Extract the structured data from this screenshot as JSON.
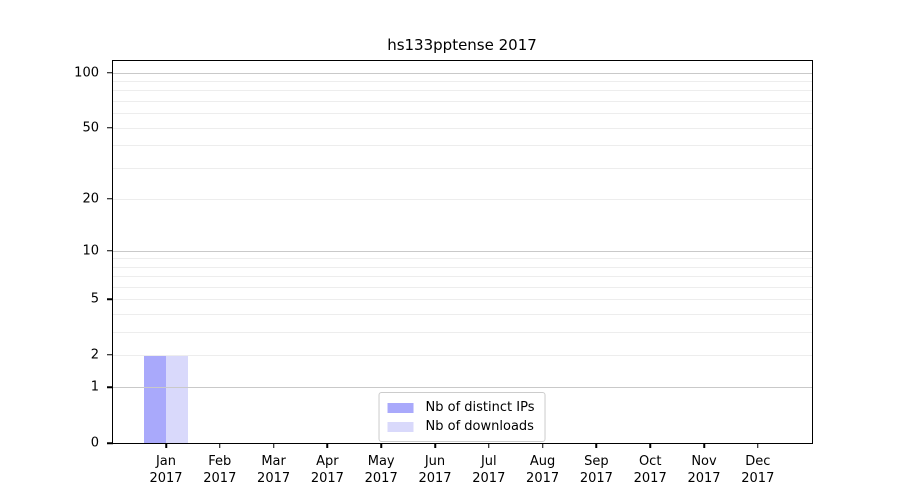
{
  "chart_data": {
    "type": "bar",
    "title": "hs133pptense 2017",
    "xlabel": "",
    "ylabel": "",
    "categories": [
      "Jan",
      "Feb",
      "Mar",
      "Apr",
      "May",
      "Jun",
      "Jul",
      "Aug",
      "Sep",
      "Oct",
      "Nov",
      "Dec"
    ],
    "category_year": "2017",
    "series": [
      {
        "name": "Nb of distinct IPs",
        "color": "#a9a9fb",
        "values": [
          2,
          0,
          0,
          0,
          0,
          0,
          0,
          0,
          0,
          0,
          0,
          0
        ]
      },
      {
        "name": "Nb of downloads",
        "color": "#d9d9fb",
        "values": [
          2,
          0,
          0,
          0,
          0,
          0,
          0,
          0,
          0,
          0,
          0,
          0
        ]
      }
    ],
    "yscale": "log1p",
    "ylim": [
      0,
      116
    ],
    "yticks": [
      0,
      1,
      2,
      5,
      10,
      20,
      50,
      100
    ],
    "major_gridlines": [
      1,
      10,
      100
    ],
    "minor_gridlines": [
      2,
      3,
      4,
      5,
      6,
      7,
      8,
      9,
      20,
      30,
      40,
      50,
      60,
      70,
      80,
      90
    ],
    "grid": true,
    "legend_position": "lower center"
  }
}
